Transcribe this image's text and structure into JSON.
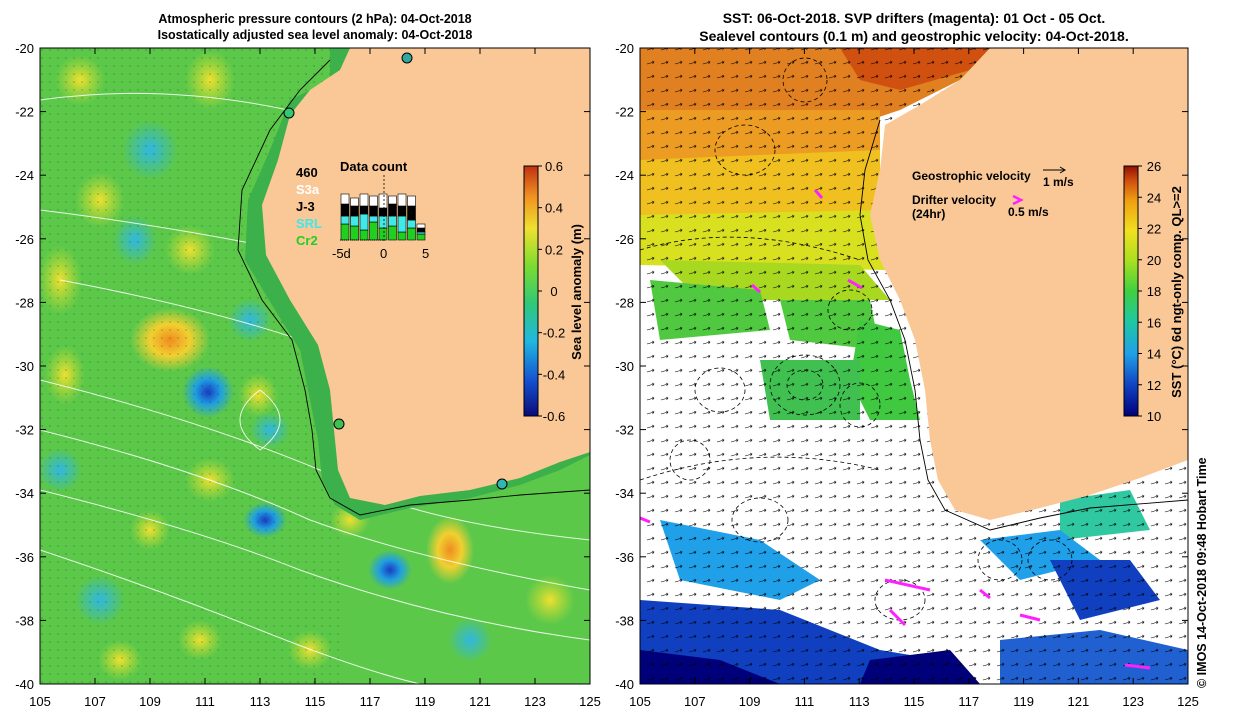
{
  "left_panel": {
    "title_line1": "Atmospheric pressure contours (2 hPa): 04-Oct-2018",
    "title_line2": "Isostatically adjusted sea level anomaly: 04-Oct-2018",
    "x_ticks": [
      "105",
      "107",
      "109",
      "111",
      "113",
      "115",
      "117",
      "119",
      "121",
      "123",
      "125"
    ],
    "y_ticks": [
      "-20",
      "-22",
      "-24",
      "-26",
      "-28",
      "-30",
      "-32",
      "-34",
      "-36",
      "-38",
      "-40"
    ],
    "colorbar": {
      "label": "Sea level anomaly (m)",
      "ticks": [
        "0.6",
        "0.4",
        "0.2",
        "0",
        "-0.2",
        "-0.4",
        "-0.6"
      ],
      "colors": [
        "#0a0a7a",
        "#1550d0",
        "#20b8e0",
        "#30c878",
        "#7bdc30",
        "#f0e030",
        "#f09020",
        "#c03010"
      ]
    },
    "data_count": {
      "title": "Data count",
      "total": "460",
      "satellites": [
        {
          "name": "S3a",
          "color": "#ffffff"
        },
        {
          "name": "J-3",
          "color": "#000000"
        },
        {
          "name": "SRL",
          "color": "#40e8e8"
        },
        {
          "name": "Cr2",
          "color": "#20d020"
        }
      ],
      "axis": [
        "-5d",
        "0",
        "5"
      ]
    }
  },
  "right_panel": {
    "title_line1": "SST: 06-Oct-2018. SVP drifters (magenta): 01 Oct - 05 Oct.",
    "title_line2": "Sealevel contours (0.1 m) and geostrophic velocity: 04-Oct-2018.",
    "x_ticks": [
      "105",
      "107",
      "109",
      "111",
      "113",
      "115",
      "117",
      "119",
      "121",
      "123",
      "125"
    ],
    "y_ticks": [
      "-20",
      "-22",
      "-24",
      "-26",
      "-28",
      "-30",
      "-32",
      "-34",
      "-36",
      "-38",
      "-40"
    ],
    "legend": {
      "geostrophic_label": "Geostrophic velocity",
      "geostrophic_scale": "1 m/s",
      "drifter_label": "Drifter velocity",
      "drifter_sub": "(24hr)",
      "drifter_scale": "0.5 m/s"
    },
    "colorbar": {
      "label": "SST (°C) 6d ngt-only comp. QL>=2",
      "ticks": [
        "26",
        "24",
        "22",
        "20",
        "18",
        "16",
        "14",
        "12",
        "10"
      ],
      "colors": [
        "#00007a",
        "#1040c0",
        "#20a0e8",
        "#20c8a0",
        "#40d040",
        "#a8e020",
        "#f0e020",
        "#f0a010",
        "#d05010",
        "#901000"
      ]
    },
    "copyright": "© IMOS 14-Oct-2018 09:48 Hobart Time"
  },
  "colors": {
    "land": "#fac896",
    "ocean_green": "#5cc84a",
    "shelf_green": "#3cb04a"
  }
}
